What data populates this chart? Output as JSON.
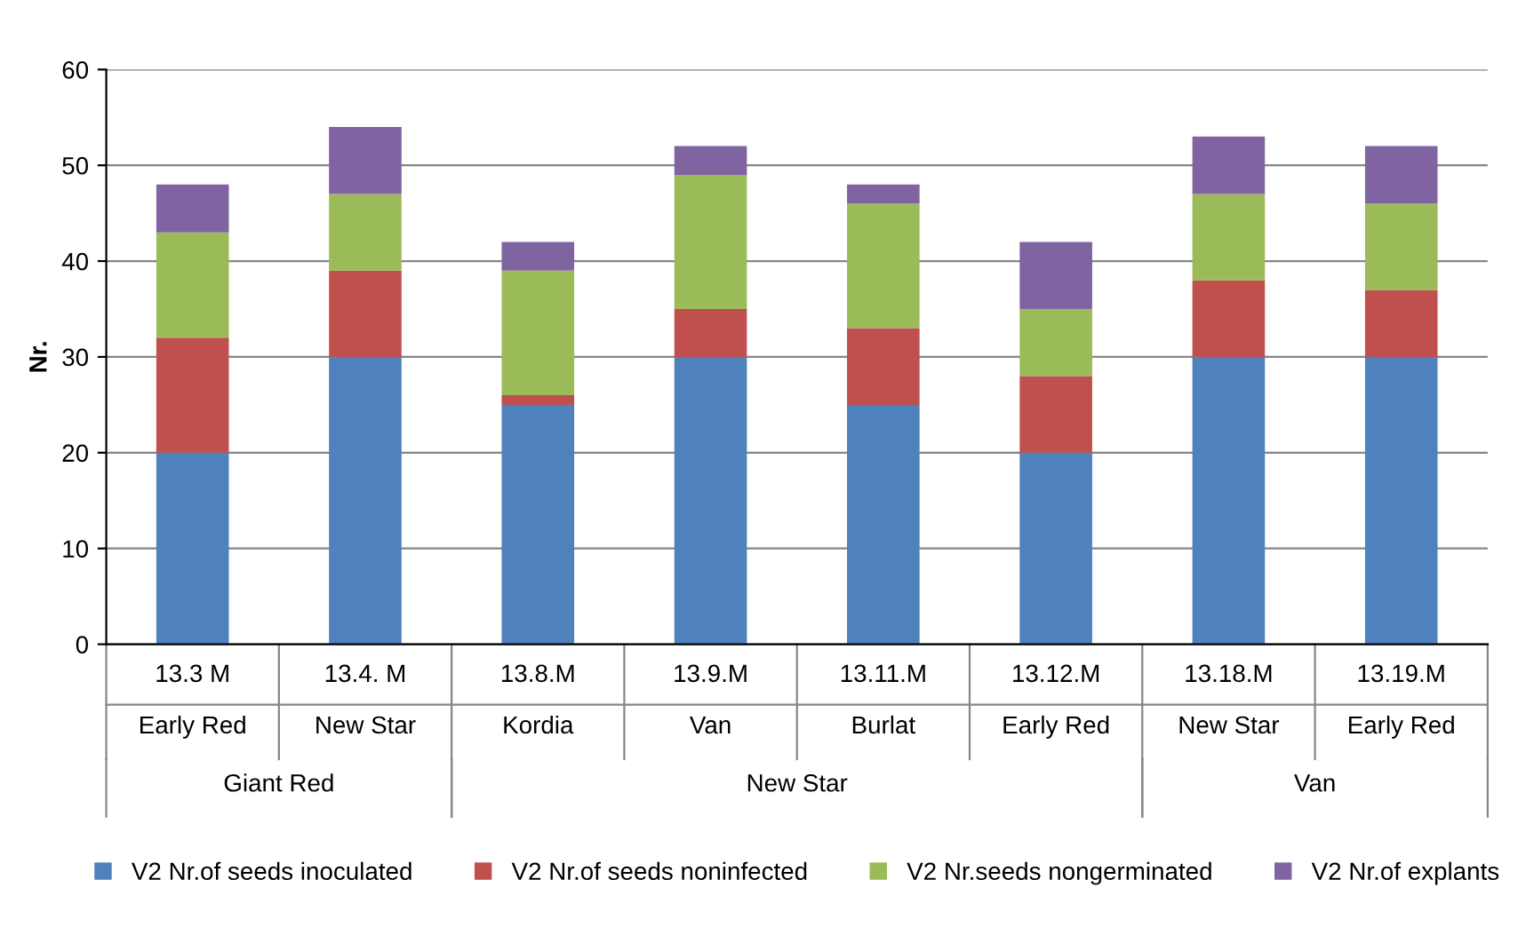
{
  "chart_data": {
    "type": "bar",
    "stacked": true,
    "ylabel": "Nr.",
    "categories": [
      "13.3 M\nEarly Red",
      "13.4. M\nNew Star",
      "13.8.M\nKordia",
      "13.9.M\nVan",
      "13.11.M\nBurlat",
      "13.12.M\nEarly Red",
      "13.18.M\nNew Star",
      "13.19.M\nEarly Red"
    ],
    "series": [
      {
        "name": "V2 Nr.of seeds inoculated",
        "color": "#4f81bd",
        "values": [
          20,
          30,
          25,
          30,
          25,
          20,
          30,
          30
        ]
      },
      {
        "name": "V2 Nr.of seeds noninfected",
        "color": "#c0504d",
        "values": [
          12,
          9,
          1,
          5,
          8,
          8,
          8,
          7
        ]
      },
      {
        "name": "V2 Nr.seeds nongerminated",
        "color": "#9bbb59",
        "values": [
          11,
          8,
          13,
          14,
          13,
          7,
          9,
          9
        ]
      },
      {
        "name": "V2 Nr.of explants",
        "color": "#8064a2",
        "values": [
          5,
          7,
          3,
          3,
          2,
          7,
          6,
          6
        ]
      }
    ],
    "annotations": [
      "Giant Red",
      "New Star",
      "Van"
    ],
    "ylim": [
      0,
      60
    ],
    "yticks": [
      0,
      10,
      20,
      30,
      40,
      50,
      60
    ],
    "grid": "y",
    "legend": "bottom"
  }
}
